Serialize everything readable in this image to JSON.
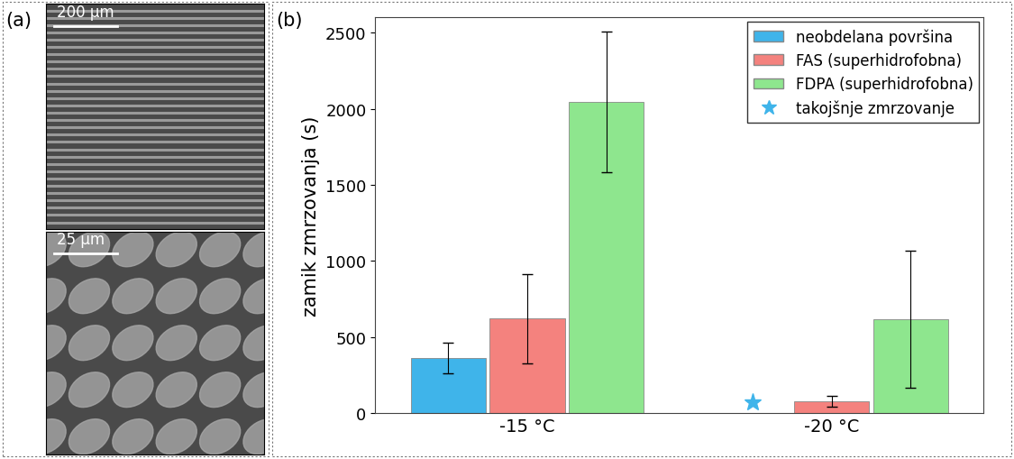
{
  "panel_a": {
    "label": "(a)",
    "scale_bars": [
      "200 µm",
      "25 µm"
    ]
  },
  "chart_data": {
    "type": "bar",
    "panel_label": "(b)",
    "y_label": "zamik zmrzovanja (s)",
    "categories": [
      "-15 °C",
      "-20 °C"
    ],
    "series": [
      {
        "name": "neobdelana površina",
        "color": "#3fb4ea",
        "values": [
          360,
          0
        ],
        "errors": [
          100,
          null
        ]
      },
      {
        "name": "FAS (superhidrofobna)",
        "color": "#f4827e",
        "values": [
          620,
          75
        ],
        "errors": [
          295,
          35
        ]
      },
      {
        "name": "FDPA (superhidrofobna)",
        "color": "#8ee68e",
        "values": [
          2045,
          615
        ],
        "errors": [
          465,
          450
        ]
      }
    ],
    "immediate_freezing": {
      "name": "takojšnje zmrzovanje",
      "color": "#3fb4ea",
      "marker": "*",
      "points": [
        {
          "category": "-20 °C",
          "series": "neobdelana površina"
        }
      ]
    },
    "ylim": [
      0,
      2600
    ],
    "yticks": [
      0,
      500,
      1000,
      1500,
      2000,
      2500
    ],
    "grid": false,
    "legend": "upper right"
  }
}
